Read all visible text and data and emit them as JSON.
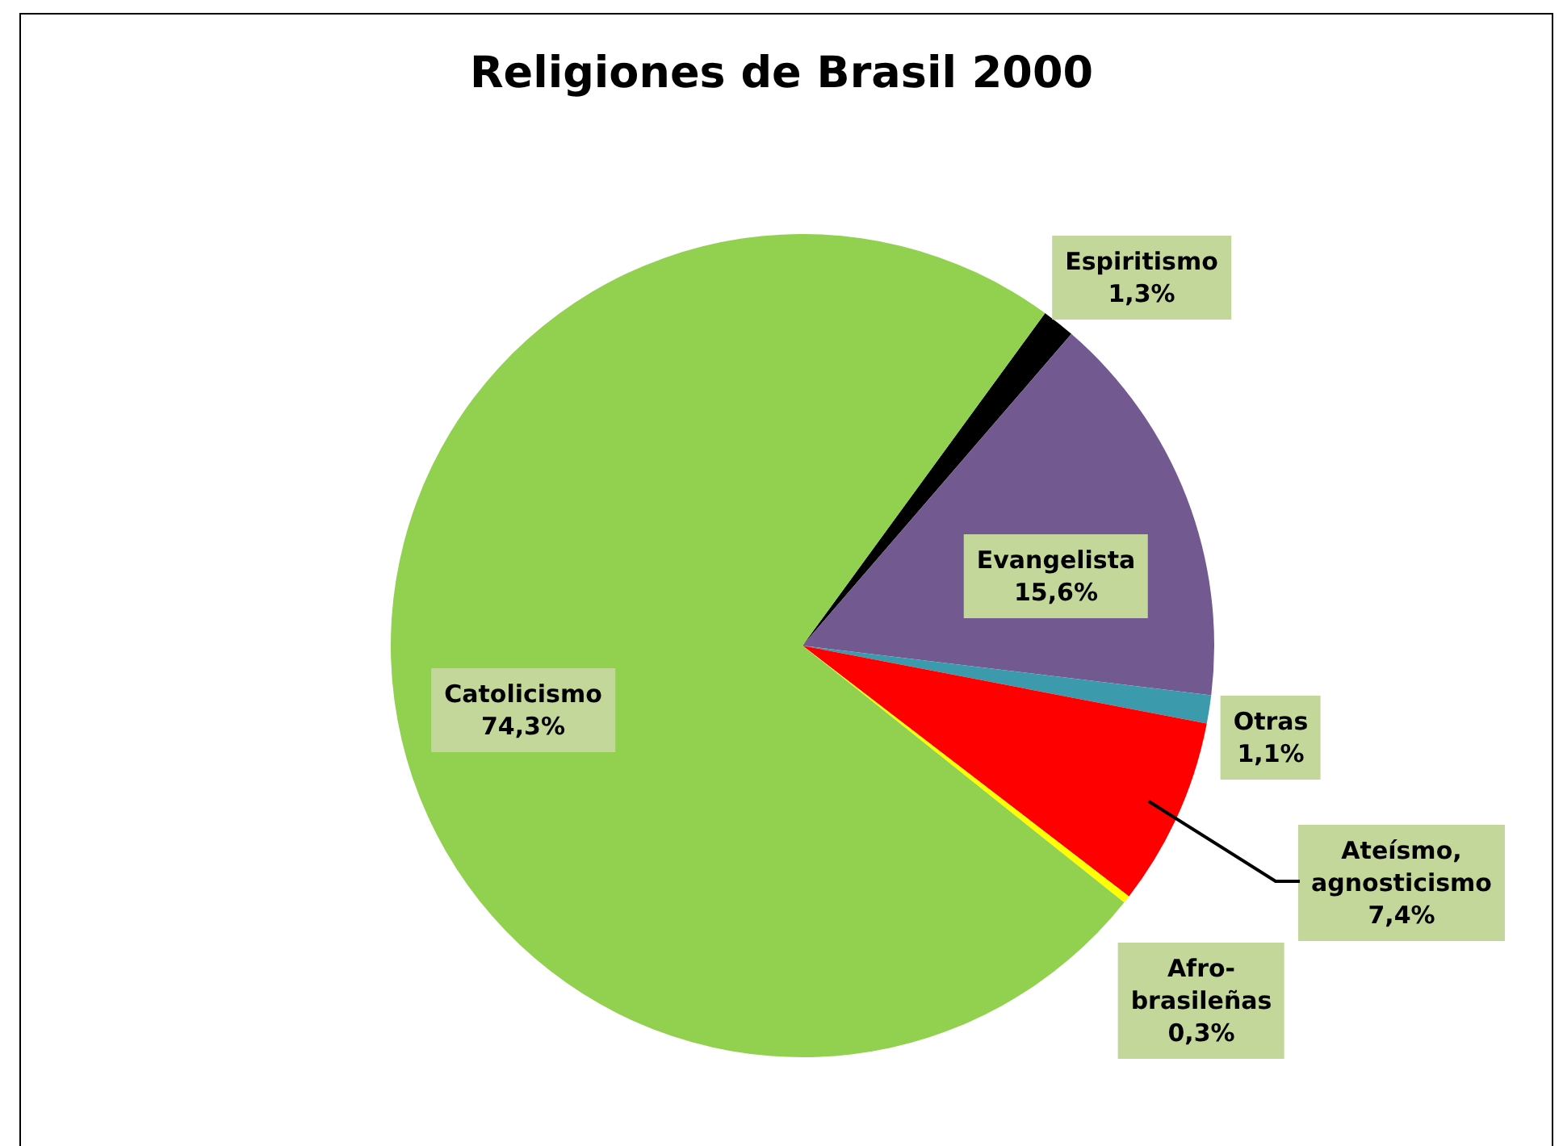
{
  "chart_data": {
    "type": "pie",
    "title": "Religiones de Brasil 2000",
    "categories": [
      "Espiritismo",
      "Evangelista",
      "Otras",
      "Ateísmo, agnosticismo",
      "Afro-brasileñas",
      "Catolicismo"
    ],
    "values": [
      1.3,
      15.6,
      1.1,
      7.4,
      0.3,
      74.3
    ],
    "colors": [
      "#000000",
      "#72598f",
      "#3b9bad",
      "#ff0000",
      "#ffff00",
      "#92d050"
    ],
    "value_labels": [
      "1,3%",
      "15,6%",
      "1,1%",
      "7,4%",
      "0,3%",
      "74,3%"
    ]
  }
}
